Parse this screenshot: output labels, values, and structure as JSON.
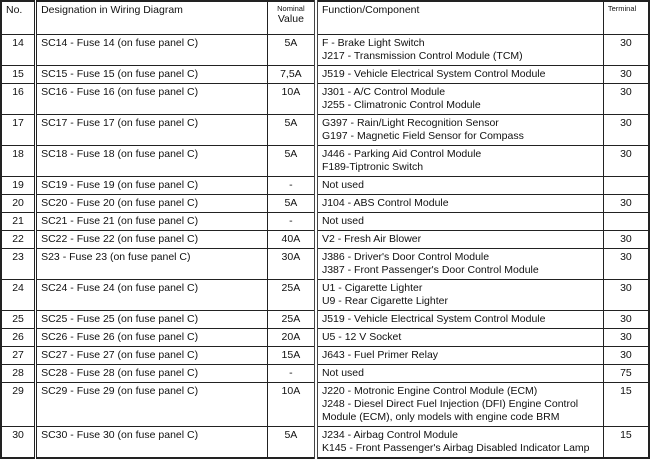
{
  "headers": {
    "no": "No.",
    "designation": "Designation in Wiring Diagram",
    "value_top": "Nominal",
    "value_bottom": "Value",
    "function": "Function/Component",
    "terminal": "Terminal"
  },
  "rows": [
    {
      "no": "14",
      "designation": "SC14 - Fuse 14 (on fuse panel C)",
      "value": "5A",
      "function": [
        "F - Brake Light Switch",
        "J217 - Transmission Control Module (TCM)"
      ],
      "terminal": "30"
    },
    {
      "no": "15",
      "designation": "SC15 - Fuse 15 (on fuse panel C)",
      "value": "7,5A",
      "function": [
        "J519 - Vehicle Electrical System Control Module"
      ],
      "terminal": "30"
    },
    {
      "no": "16",
      "designation": "SC16 - Fuse 16 (on fuse panel C)",
      "value": "10A",
      "function": [
        "J301 - A/C Control Module",
        "J255 - Climatronic Control Module"
      ],
      "terminal": "30"
    },
    {
      "no": "17",
      "designation": "SC17 - Fuse 17 (on fuse panel C)",
      "value": "5A",
      "function": [
        "G397 - Rain/Light Recognition Sensor",
        "G197 - Magnetic Field Sensor for Compass"
      ],
      "terminal": "30"
    },
    {
      "no": "18",
      "designation": "SC18 - Fuse 18 (on fuse panel C)",
      "value": "5A",
      "function": [
        "J446 - Parking Aid Control Module",
        "F189-Tiptronic Switch"
      ],
      "terminal": "30"
    },
    {
      "no": "19",
      "designation": "SC19 - Fuse 19 (on fuse panel C)",
      "value": "-",
      "function": [
        "Not used"
      ],
      "terminal": ""
    },
    {
      "no": "20",
      "designation": "SC20 - Fuse 20 (on fuse panel C)",
      "value": "5A",
      "function": [
        "J104 - ABS Control Module"
      ],
      "terminal": "30"
    },
    {
      "no": "21",
      "designation": "SC21 - Fuse 21 (on fuse panel C)",
      "value": "-",
      "function": [
        "Not used"
      ],
      "terminal": ""
    },
    {
      "no": "22",
      "designation": "SC22 - Fuse 22 (on fuse panel C)",
      "value": "40A",
      "function": [
        "V2 - Fresh Air Blower"
      ],
      "terminal": "30"
    },
    {
      "no": "23",
      "designation": "S23 - Fuse 23 (on fuse panel C)",
      "value": "30A",
      "function": [
        "J386 - Driver's Door Control Module",
        "J387 - Front Passenger's Door Control Module"
      ],
      "terminal": "30"
    },
    {
      "no": "24",
      "designation": "SC24 - Fuse 24 (on fuse panel C)",
      "value": "25A",
      "function": [
        "U1 - Cigarette Lighter",
        "U9 - Rear Cigarette Lighter"
      ],
      "terminal": "30"
    },
    {
      "no": "25",
      "designation": "SC25 - Fuse 25 (on fuse panel C)",
      "value": "25A",
      "function": [
        "J519 - Vehicle Electrical System Control Module"
      ],
      "terminal": "30"
    },
    {
      "no": "26",
      "designation": "SC26 - Fuse 26 (on fuse panel C)",
      "value": "20A",
      "function": [
        "U5 - 12 V Socket"
      ],
      "terminal": "30"
    },
    {
      "no": "27",
      "designation": "SC27 - Fuse 27 (on fuse panel C)",
      "value": "15A",
      "function": [
        "J643 - Fuel Primer Relay"
      ],
      "terminal": "30"
    },
    {
      "no": "28",
      "designation": "SC28 - Fuse 28 (on fuse panel C)",
      "value": "-",
      "function": [
        "Not used"
      ],
      "terminal": "75"
    },
    {
      "no": "29",
      "designation": "SC29 - Fuse 29 (on fuse panel C)",
      "value": "10A",
      "function": [
        "J220 - Motronic Engine Control Module (ECM)",
        "J248 - Diesel Direct Fuel Injection (DFI) Engine Control",
        "Module (ECM), only models with engine code BRM"
      ],
      "terminal": "15"
    },
    {
      "no": "30",
      "designation": "SC30 - Fuse 30 (on fuse panel C)",
      "value": "5A",
      "function": [
        "J234 - Airbag Control Module",
        "K145 - Front Passenger's Airbag Disabled Indicator Lamp"
      ],
      "terminal": "15"
    }
  ]
}
